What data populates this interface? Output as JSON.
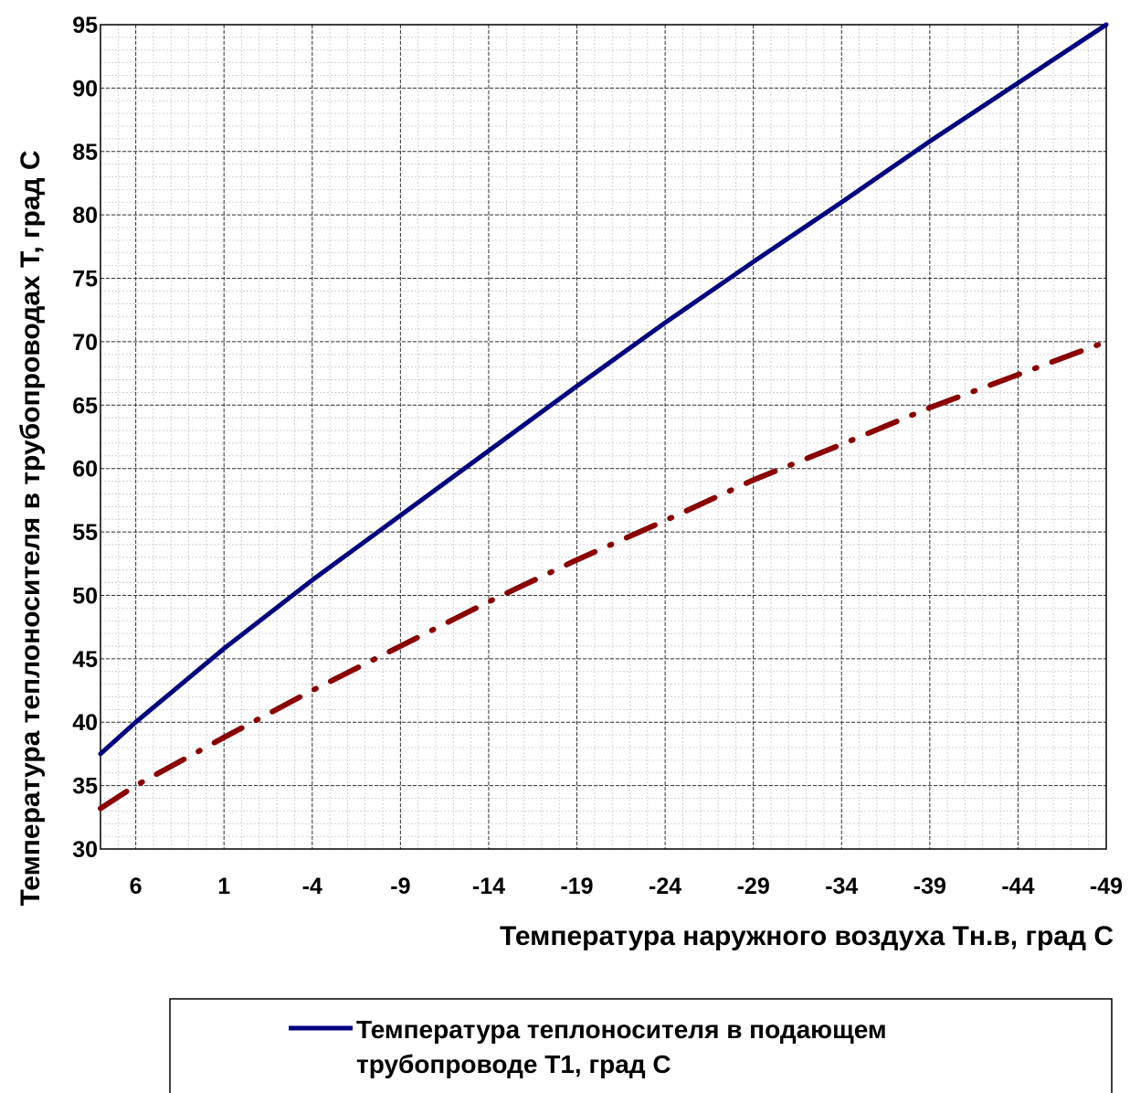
{
  "chart_data": {
    "type": "line",
    "xlabel": "Температура наружного воздуха  Тн.в, град С",
    "ylabel": "Температура теплоносителя в трубопроводах Т, град С",
    "x_range": [
      8,
      -49
    ],
    "ylim": [
      30,
      95
    ],
    "x_ticks": [
      6,
      1,
      -4,
      -9,
      -14,
      -19,
      -24,
      -29,
      -34,
      -39,
      -44,
      -49
    ],
    "y_ticks": [
      30,
      35,
      40,
      45,
      50,
      55,
      60,
      65,
      70,
      75,
      80,
      85,
      90,
      95
    ],
    "grid": true,
    "legend_position": "bottom",
    "series": [
      {
        "name": "Температура теплоносителя в подающем трубопроводе Т1, град С",
        "legend_lines": [
          "Температура теплоносителя в подающем",
          "трубопроводе Т1, град С"
        ],
        "color": "#000080",
        "style": "solid",
        "x": [
          8,
          6,
          1,
          -4,
          -9,
          -14,
          -19,
          -24,
          -29,
          -34,
          -39,
          -44,
          -49
        ],
        "y": [
          37.5,
          40.0,
          45.8,
          51.2,
          56.3,
          61.4,
          66.5,
          71.5,
          76.3,
          81.0,
          85.8,
          90.4,
          95.0
        ]
      },
      {
        "name": "",
        "color": "#8B0000",
        "style": "dash-dot",
        "x": [
          8,
          6,
          1,
          -4,
          -9,
          -14,
          -19,
          -24,
          -29,
          -34,
          -39,
          -44,
          -49
        ],
        "y": [
          33.2,
          35.0,
          38.8,
          42.5,
          46.0,
          49.5,
          52.8,
          55.9,
          59.1,
          61.9,
          64.8,
          67.4,
          70.0
        ]
      }
    ]
  }
}
